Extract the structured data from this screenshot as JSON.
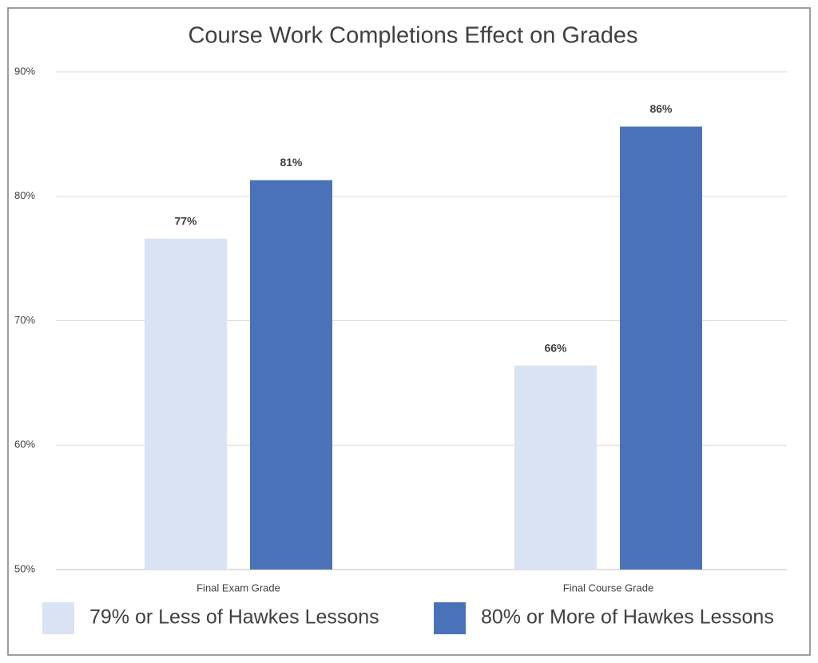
{
  "chart_data": {
    "type": "bar",
    "title": "Course Work Completions Effect on Grades",
    "categories": [
      "Final Exam Grade",
      "Final Course Grade"
    ],
    "series": [
      {
        "name": "79% or Less of Hawkes Lessons",
        "color": "#dae3f3",
        "values": [
          76.6,
          66.4
        ],
        "value_labels": [
          "77%",
          "66%"
        ]
      },
      {
        "name": "80% or More of Hawkes Lessons",
        "color": "#4a72b8",
        "values": [
          81.3,
          85.6
        ],
        "value_labels": [
          "81%",
          "86%"
        ]
      }
    ],
    "ylim": [
      50,
      90
    ],
    "yticks": [
      {
        "value": 50,
        "label": "50%"
      },
      {
        "value": 60,
        "label": "60%"
      },
      {
        "value": 70,
        "label": "70%"
      },
      {
        "value": 80,
        "label": "80%"
      },
      {
        "value": 90,
        "label": "90%"
      }
    ],
    "grid": true,
    "legend": "bottom"
  }
}
